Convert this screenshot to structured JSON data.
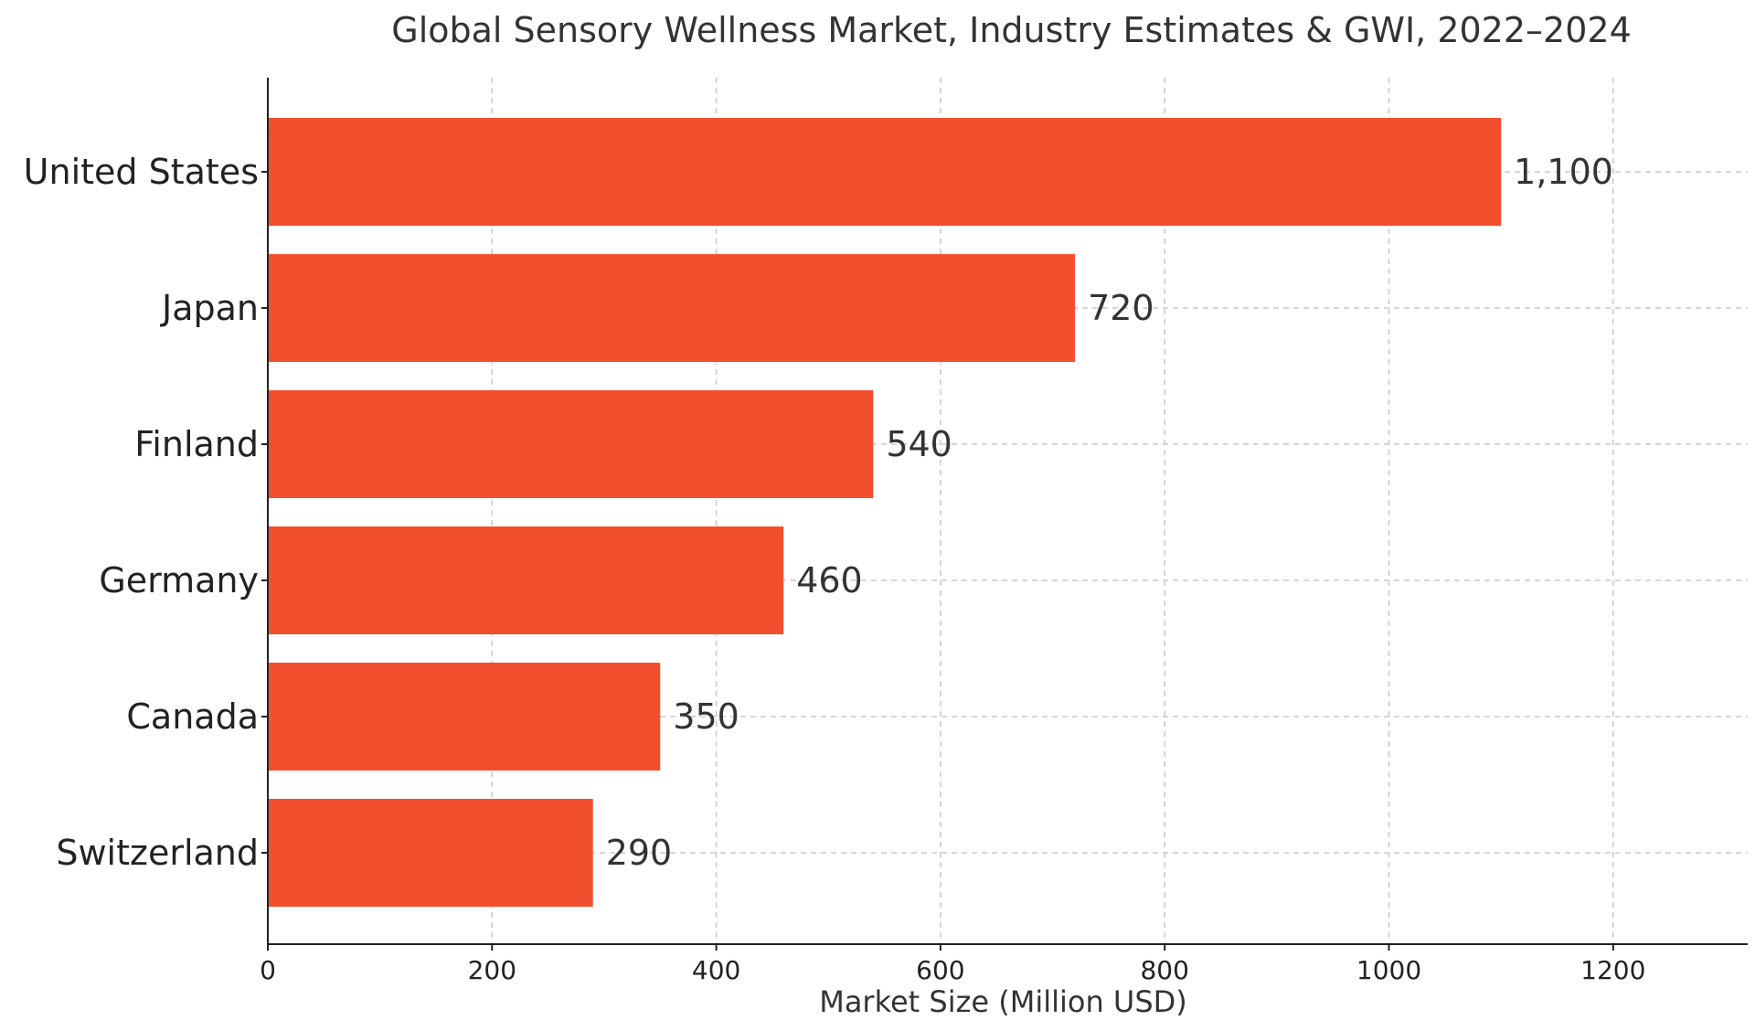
{
  "chart_data": {
    "type": "bar",
    "orientation": "horizontal",
    "title": "Global Sensory Wellness Market, Industry Estimates & GWI, 2022–2024",
    "xlabel": "Market Size (Million USD)",
    "ylabel": "",
    "categories": [
      "United States",
      "Japan",
      "Finland",
      "Germany",
      "Canada",
      "Switzerland"
    ],
    "values": [
      1100,
      720,
      540,
      460,
      350,
      290
    ],
    "data_labels": [
      "1,100",
      "720",
      "540",
      "460",
      "350",
      "290"
    ],
    "xlim": [
      0,
      1320
    ],
    "xticks": [
      0,
      200,
      400,
      600,
      800,
      1000,
      1200
    ],
    "grid": true,
    "bar_color": "#f24f2f"
  }
}
